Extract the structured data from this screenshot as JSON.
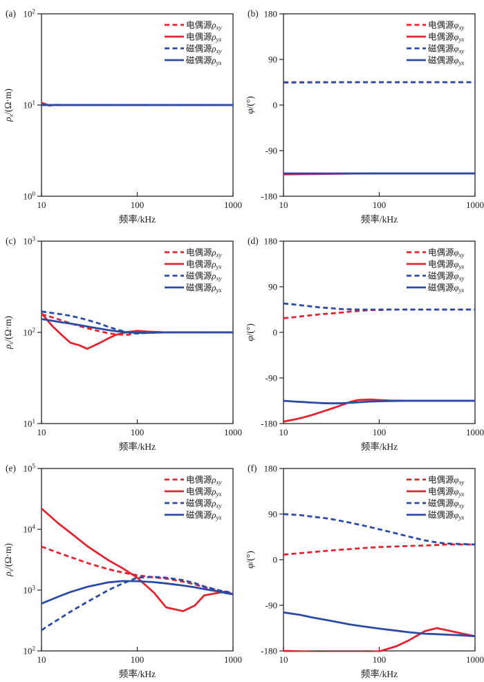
{
  "figure": {
    "xlabel": "频率/kHz",
    "colors": {
      "red": "#E32330",
      "blue": "#2B4AA5",
      "axis": "#222222",
      "background": "#FFFFFF"
    }
  },
  "chart_data": [
    {
      "id": "a",
      "panel_label": "(a)",
      "type": "line",
      "xscale": "log",
      "yscale": "log",
      "xlabel": "频率/kHz",
      "ylabel": {
        "sym": "ρ",
        "sub": "s",
        "rest": "/(Ω·m)"
      },
      "xlim": [
        10,
        1000
      ],
      "ylim": [
        1,
        100
      ],
      "xticks": [
        10,
        100,
        1000
      ],
      "yticks": [
        1,
        10,
        100
      ],
      "legend_position": "top-right",
      "series": [
        {
          "name": "电偶源ρxy",
          "prefix": "电偶源",
          "sym": "ρ",
          "sub": "xy",
          "color": "red",
          "dash": true,
          "x": [
            10,
            11,
            12,
            14,
            17,
            20,
            30,
            50,
            100,
            200,
            500,
            1000
          ],
          "y": [
            10.3,
            10.15,
            10.05,
            9.95,
            10,
            10,
            10,
            10,
            10,
            10,
            10,
            10
          ]
        },
        {
          "name": "电偶源ρyx",
          "prefix": "电偶源",
          "sym": "ρ",
          "sub": "yx",
          "color": "red",
          "dash": false,
          "x": [
            10,
            11,
            12,
            14,
            17,
            20,
            30,
            50,
            100,
            200,
            500,
            1000
          ],
          "y": [
            10.55,
            10.25,
            9.85,
            10.05,
            10,
            10,
            10,
            10,
            10,
            10,
            10,
            10
          ]
        },
        {
          "name": "磁偶源ρxy",
          "prefix": "磁偶源",
          "sym": "ρ",
          "sub": "xy",
          "color": "blue",
          "dash": true,
          "x": [
            10,
            11,
            12,
            14,
            17,
            20,
            30,
            50,
            100,
            200,
            500,
            1000
          ],
          "y": [
            10,
            10,
            10,
            10,
            10,
            10,
            10,
            10,
            10,
            10,
            10,
            10
          ]
        },
        {
          "name": "磁偶源ρyx",
          "prefix": "磁偶源",
          "sym": "ρ",
          "sub": "yx",
          "color": "blue",
          "dash": false,
          "x": [
            10,
            11,
            12,
            14,
            17,
            20,
            30,
            50,
            100,
            200,
            500,
            1000
          ],
          "y": [
            10,
            10,
            10,
            10,
            10,
            10,
            10,
            10,
            10,
            10,
            10,
            10
          ]
        }
      ]
    },
    {
      "id": "b",
      "panel_label": "(b)",
      "type": "line",
      "xscale": "log",
      "yscale": "linear",
      "xlabel": "频率/kHz",
      "ylabel": {
        "sym": "φ",
        "sub": "",
        "rest": "/(°)"
      },
      "xlim": [
        10,
        1000
      ],
      "ylim": [
        -180,
        180
      ],
      "xticks": [
        10,
        100,
        1000
      ],
      "yticks": [
        -180,
        -90,
        0,
        90,
        180
      ],
      "legend_position": "top-right",
      "series": [
        {
          "name": "电偶源φxy",
          "prefix": "电偶源",
          "sym": "φ",
          "sub": "xy",
          "color": "red",
          "dash": true,
          "x": [
            10,
            20,
            40,
            70,
            100,
            200,
            500,
            1000
          ],
          "y": [
            44.3,
            44.6,
            44.9,
            45,
            45,
            45,
            45,
            45
          ]
        },
        {
          "name": "电偶源φyx",
          "prefix": "电偶源",
          "sym": "φ",
          "sub": "yx",
          "color": "red",
          "dash": false,
          "x": [
            10,
            20,
            40,
            70,
            100,
            200,
            500,
            1000
          ],
          "y": [
            -136.8,
            -136.2,
            -135.5,
            -135.2,
            -135,
            -135,
            -135,
            -135
          ]
        },
        {
          "name": "磁偶源φxy",
          "prefix": "磁偶源",
          "sym": "φ",
          "sub": "xy",
          "color": "blue",
          "dash": true,
          "x": [
            10,
            20,
            40,
            70,
            100,
            200,
            500,
            1000
          ],
          "y": [
            45,
            45,
            45,
            45,
            45,
            45,
            45,
            45
          ]
        },
        {
          "name": "磁偶源φyx",
          "prefix": "磁偶源",
          "sym": "φ",
          "sub": "yx",
          "color": "blue",
          "dash": false,
          "x": [
            10,
            20,
            40,
            70,
            100,
            200,
            500,
            1000
          ],
          "y": [
            -135,
            -135,
            -135,
            -135,
            -135,
            -135,
            -135,
            -135
          ]
        }
      ]
    },
    {
      "id": "c",
      "panel_label": "(c)",
      "type": "line",
      "xscale": "log",
      "yscale": "log",
      "xlabel": "频率/kHz",
      "ylabel": {
        "sym": "ρ",
        "sub": "s",
        "rest": "/(Ω·m)"
      },
      "xlim": [
        10,
        1000
      ],
      "ylim": [
        10,
        1000
      ],
      "xticks": [
        10,
        100,
        1000
      ],
      "yticks": [
        10,
        100,
        1000
      ],
      "legend_position": "top-right",
      "series": [
        {
          "name": "电偶源ρxy",
          "prefix": "电偶源",
          "sym": "ρ",
          "sub": "xy",
          "color": "red",
          "dash": true,
          "x": [
            10,
            13,
            16,
            20,
            25,
            30,
            40,
            50,
            60,
            80,
            100,
            130,
            200,
            300,
            500,
            1000
          ],
          "y": [
            158,
            146,
            136,
            126,
            117,
            111,
            103,
            98,
            95,
            94,
            99,
            101,
            100,
            100,
            100,
            100
          ]
        },
        {
          "name": "电偶源ρyx",
          "prefix": "电偶源",
          "sym": "ρ",
          "sub": "yx",
          "color": "red",
          "dash": false,
          "x": [
            10,
            13,
            16,
            20,
            25,
            30,
            40,
            50,
            60,
            80,
            100,
            130,
            200,
            300,
            500,
            1000
          ],
          "y": [
            162,
            117,
            95,
            77,
            72,
            66,
            76,
            86,
            94,
            101,
            104,
            102,
            100,
            100,
            100,
            100
          ]
        },
        {
          "name": "磁偶源ρxy",
          "prefix": "磁偶源",
          "sym": "ρ",
          "sub": "xy",
          "color": "blue",
          "dash": true,
          "x": [
            10,
            13,
            16,
            20,
            25,
            30,
            40,
            50,
            60,
            80,
            100,
            130,
            200,
            300,
            500,
            1000
          ],
          "y": [
            169,
            163,
            158,
            152,
            144,
            137,
            125,
            115,
            108,
            100,
            97,
            99,
            100,
            100,
            100,
            100
          ]
        },
        {
          "name": "磁偶源ρyx",
          "prefix": "磁偶源",
          "sym": "ρ",
          "sub": "yx",
          "color": "blue",
          "dash": false,
          "x": [
            10,
            13,
            16,
            20,
            25,
            30,
            40,
            50,
            60,
            80,
            100,
            130,
            200,
            300,
            500,
            1000
          ],
          "y": [
            140,
            134,
            129,
            125,
            120,
            116,
            110,
            106,
            103,
            100,
            99,
            99,
            100,
            100,
            100,
            100
          ]
        }
      ]
    },
    {
      "id": "d",
      "panel_label": "(d)",
      "type": "line",
      "xscale": "log",
      "yscale": "linear",
      "xlabel": "频率/kHz",
      "ylabel": {
        "sym": "φ",
        "sub": "",
        "rest": "/(°)"
      },
      "xlim": [
        10,
        1000
      ],
      "ylim": [
        -180,
        180
      ],
      "xticks": [
        10,
        100,
        1000
      ],
      "yticks": [
        -180,
        -90,
        0,
        90,
        180
      ],
      "legend_position": "top-right",
      "series": [
        {
          "name": "电偶源φxy",
          "prefix": "电偶源",
          "sym": "φ",
          "sub": "xy",
          "color": "red",
          "dash": true,
          "x": [
            10,
            13,
            16,
            20,
            25,
            30,
            40,
            50,
            60,
            80,
            100,
            130,
            200,
            300,
            500,
            1000
          ],
          "y": [
            28,
            30,
            32,
            34,
            36,
            37,
            39,
            41,
            42,
            44,
            44,
            45,
            45,
            45,
            45,
            45
          ]
        },
        {
          "name": "电偶源φyx",
          "prefix": "电偶源",
          "sym": "φ",
          "sub": "yx",
          "color": "red",
          "dash": false,
          "x": [
            10,
            13,
            16,
            20,
            25,
            30,
            40,
            50,
            60,
            80,
            100,
            130,
            200,
            300,
            500,
            1000
          ],
          "y": [
            -176,
            -172,
            -168,
            -163,
            -157,
            -152,
            -144,
            -137,
            -133.5,
            -132.5,
            -133.5,
            -134.5,
            -135,
            -135,
            -135,
            -135
          ]
        },
        {
          "name": "磁偶源φxy",
          "prefix": "磁偶源",
          "sym": "φ",
          "sub": "xy",
          "color": "blue",
          "dash": true,
          "x": [
            10,
            13,
            16,
            20,
            25,
            30,
            40,
            50,
            60,
            80,
            100,
            130,
            200,
            300,
            500,
            1000
          ],
          "y": [
            57,
            55,
            53,
            51,
            49,
            48,
            46,
            45.5,
            45,
            45,
            45,
            45,
            45,
            45,
            45,
            45
          ]
        },
        {
          "name": "磁偶源φyx",
          "prefix": "磁偶源",
          "sym": "φ",
          "sub": "yx",
          "color": "blue",
          "dash": false,
          "x": [
            10,
            13,
            16,
            20,
            25,
            30,
            40,
            50,
            60,
            80,
            100,
            130,
            200,
            300,
            500,
            1000
          ],
          "y": [
            -135,
            -136.5,
            -137.5,
            -138.5,
            -139.5,
            -140,
            -140,
            -139,
            -138,
            -136.5,
            -136,
            -135.5,
            -135,
            -135,
            -135,
            -135
          ]
        }
      ]
    },
    {
      "id": "e",
      "panel_label": "(e)",
      "type": "line",
      "xscale": "log",
      "yscale": "log",
      "xlabel": "频率/kHz",
      "ylabel": {
        "sym": "ρ",
        "sub": "s",
        "rest": "/(Ω·m)"
      },
      "xlim": [
        10,
        1000
      ],
      "ylim": [
        100,
        100000
      ],
      "xticks": [
        10,
        100,
        1000
      ],
      "yticks": [
        100,
        1000,
        10000,
        100000
      ],
      "legend_position": "top-right",
      "series": [
        {
          "name": "电偶源ρxy",
          "prefix": "电偶源",
          "sym": "ρ",
          "sub": "xy",
          "color": "red",
          "dash": true,
          "x": [
            10,
            15,
            20,
            30,
            50,
            70,
            100,
            150,
            200,
            300,
            400,
            500,
            700,
            850,
            1000
          ],
          "y": [
            5200,
            4100,
            3500,
            2800,
            2200,
            1950,
            1750,
            1620,
            1550,
            1380,
            1240,
            1120,
            980,
            910,
            870
          ]
        },
        {
          "name": "电偶源ρyx",
          "prefix": "电偶源",
          "sym": "ρ",
          "sub": "yx",
          "color": "red",
          "dash": false,
          "x": [
            10,
            15,
            20,
            30,
            50,
            70,
            100,
            150,
            200,
            300,
            400,
            500,
            700,
            850,
            1000
          ],
          "y": [
            22000,
            12500,
            8800,
            5300,
            3100,
            2300,
            1600,
            900,
            520,
            450,
            560,
            820,
            900,
            950,
            850
          ]
        },
        {
          "name": "磁偶源ρxy",
          "prefix": "磁偶源",
          "sym": "ρ",
          "sub": "xy",
          "color": "blue",
          "dash": true,
          "x": [
            10,
            15,
            20,
            30,
            50,
            70,
            100,
            150,
            200,
            300,
            400,
            500,
            700,
            850,
            1000
          ],
          "y": [
            220,
            330,
            440,
            640,
            1000,
            1280,
            1600,
            1650,
            1600,
            1460,
            1300,
            1150,
            1000,
            940,
            900
          ]
        },
        {
          "name": "磁偶源ρyx",
          "prefix": "磁偶源",
          "sym": "ρ",
          "sub": "yx",
          "color": "blue",
          "dash": false,
          "x": [
            10,
            15,
            20,
            30,
            50,
            70,
            100,
            150,
            200,
            300,
            400,
            500,
            700,
            850,
            1000
          ],
          "y": [
            600,
            780,
            930,
            1130,
            1340,
            1410,
            1400,
            1350,
            1290,
            1190,
            1110,
            1040,
            950,
            890,
            855
          ]
        }
      ]
    },
    {
      "id": "f",
      "panel_label": "(f)",
      "type": "line",
      "xscale": "log",
      "yscale": "linear",
      "xlabel": "频率/kHz",
      "ylabel": {
        "sym": "φ",
        "sub": "",
        "rest": "/(°)"
      },
      "xlim": [
        10,
        1000
      ],
      "ylim": [
        -180,
        180
      ],
      "xticks": [
        10,
        100,
        1000
      ],
      "yticks": [
        -180,
        -90,
        0,
        90,
        180
      ],
      "legend_position": "top-right",
      "series": [
        {
          "name": "电偶源φxy",
          "prefix": "电偶源",
          "sym": "φ",
          "sub": "xy",
          "color": "red",
          "dash": true,
          "x": [
            10,
            15,
            20,
            30,
            50,
            70,
            100,
            150,
            200,
            300,
            400,
            500,
            700,
            1000
          ],
          "y": [
            10,
            13,
            15,
            18,
            21,
            23,
            25,
            26,
            27,
            28,
            29,
            30,
            30,
            30
          ]
        },
        {
          "name": "电偶源φyx",
          "prefix": "电偶源",
          "sym": "φ",
          "sub": "yx",
          "color": "red",
          "dash": false,
          "x": [
            10,
            15,
            20,
            30,
            50,
            70,
            100,
            150,
            200,
            300,
            400,
            500,
            700,
            1000
          ],
          "y": [
            -180,
            -181,
            -182,
            -183,
            -183,
            -183,
            -181,
            -171,
            -160,
            -141,
            -135,
            -139,
            -145,
            -151
          ]
        },
        {
          "name": "磁偶源φxy",
          "prefix": "磁偶源",
          "sym": "φ",
          "sub": "xy",
          "color": "blue",
          "dash": true,
          "x": [
            10,
            15,
            20,
            30,
            50,
            70,
            100,
            150,
            200,
            300,
            400,
            500,
            700,
            1000
          ],
          "y": [
            90,
            88,
            85,
            81,
            73,
            67,
            60,
            52,
            46,
            38,
            34,
            32,
            31,
            30
          ]
        },
        {
          "name": "磁偶源φyx",
          "prefix": "磁偶源",
          "sym": "φ",
          "sub": "yx",
          "color": "blue",
          "dash": false,
          "x": [
            10,
            15,
            20,
            30,
            50,
            70,
            100,
            150,
            200,
            300,
            400,
            500,
            700,
            1000
          ],
          "y": [
            -104,
            -109,
            -114,
            -120,
            -128,
            -132,
            -136,
            -140,
            -143,
            -146,
            -147,
            -148,
            -149,
            -151
          ]
        }
      ]
    }
  ]
}
